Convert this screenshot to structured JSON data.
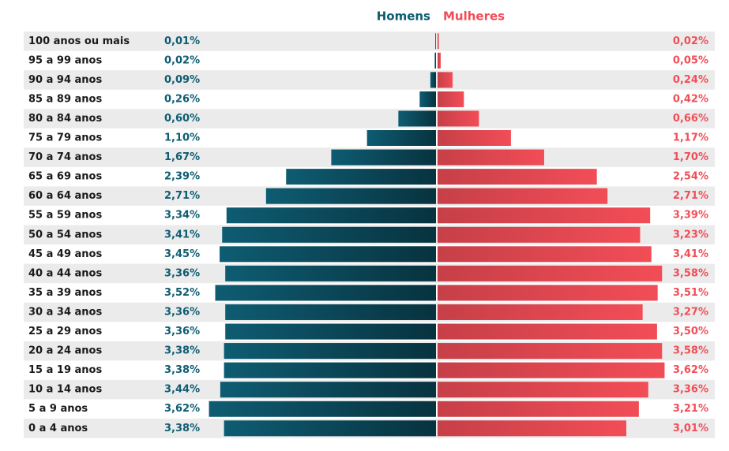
{
  "chart_data": {
    "type": "pyramid",
    "categories": [
      "100 anos ou mais",
      "95 a 99 anos",
      "90 a 94 anos",
      "85 a 89 anos",
      "80 a 84 anos",
      "75 a 79 anos",
      "70 a 74 anos",
      "65 a 69 anos",
      "60 a 64 anos",
      "55 a 59 anos",
      "50 a 54 anos",
      "45 a 49 anos",
      "40 a 44 anos",
      "35 a 39 anos",
      "30 a 34 anos",
      "25 a 29 anos",
      "20 a 24 anos",
      "15 a 19 anos",
      "10 a 14 anos",
      "5 a 9 anos",
      "0 a 4 anos"
    ],
    "series": [
      {
        "name": "Homens",
        "color": "#0e5c72",
        "values": [
          0.01,
          0.02,
          0.09,
          0.26,
          0.6,
          1.1,
          1.67,
          2.39,
          2.71,
          3.34,
          3.41,
          3.45,
          3.36,
          3.52,
          3.36,
          3.36,
          3.38,
          3.38,
          3.44,
          3.62,
          3.38
        ],
        "value_labels": [
          "0,01%",
          "0,02%",
          "0,09%",
          "0,26%",
          "0,60%",
          "1,10%",
          "1,67%",
          "2,39%",
          "2,71%",
          "3,34%",
          "3,41%",
          "3,45%",
          "3,36%",
          "3,52%",
          "3,36%",
          "3,36%",
          "3,38%",
          "3,38%",
          "3,44%",
          "3,62%",
          "3,38%"
        ]
      },
      {
        "name": "Mulheres",
        "color": "#f24d57",
        "values": [
          0.02,
          0.05,
          0.24,
          0.42,
          0.66,
          1.17,
          1.7,
          2.54,
          2.71,
          3.39,
          3.23,
          3.41,
          3.58,
          3.51,
          3.27,
          3.5,
          3.58,
          3.62,
          3.36,
          3.21,
          3.01
        ],
        "value_labels": [
          "0,02%",
          "0,05%",
          "0,24%",
          "0,42%",
          "0,66%",
          "1,17%",
          "1,70%",
          "2,54%",
          "2,71%",
          "3,39%",
          "3,23%",
          "3,41%",
          "3,58%",
          "3,51%",
          "3,27%",
          "3,50%",
          "3,58%",
          "3,62%",
          "3,36%",
          "3,21%",
          "3,01%"
        ]
      }
    ]
  }
}
